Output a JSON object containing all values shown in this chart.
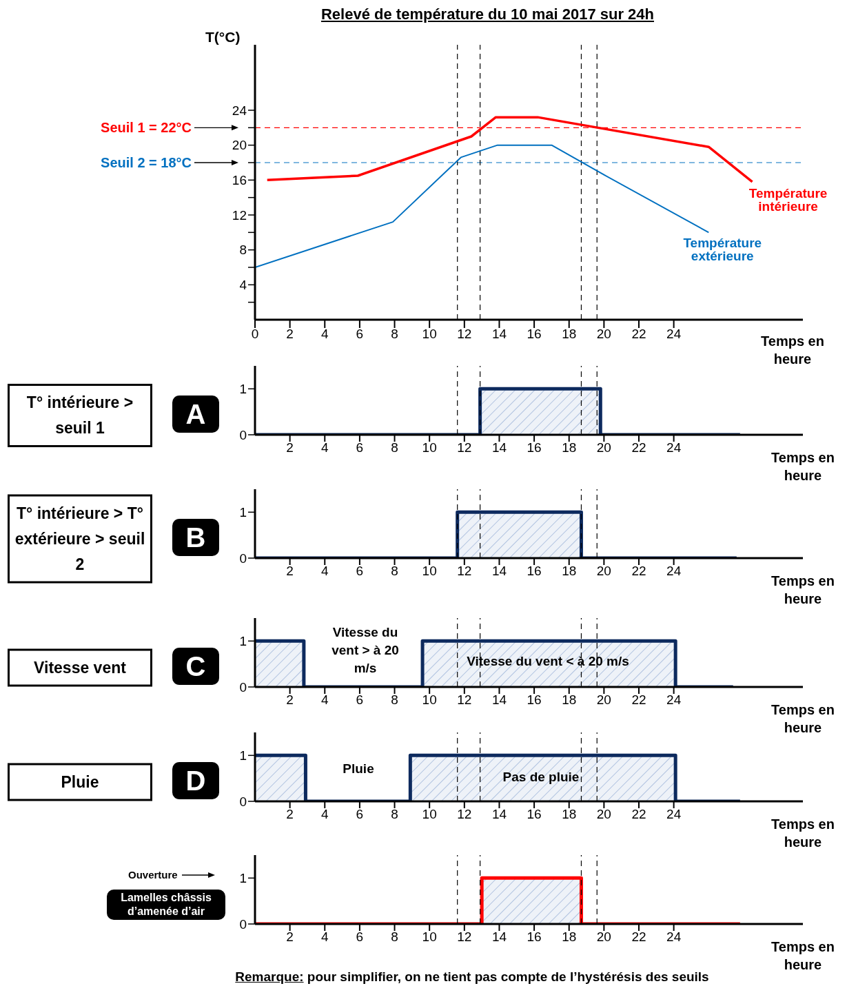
{
  "chart_data": [
    {
      "type": "line",
      "title": "Relevé de température du 10 mai 2017 sur 24h",
      "xlabel": "Temps en heure",
      "ylabel": "T(°C)",
      "legend": false,
      "marker": "none",
      "xlim": [
        0,
        31.4
      ],
      "xticks": [
        0,
        2,
        4,
        6,
        8,
        10,
        12,
        14,
        16,
        18,
        20,
        22,
        24
      ],
      "ylim": [
        0,
        31.5
      ],
      "yticks": [
        {
          "value": 2,
          "label": null
        },
        4,
        {
          "value": 6,
          "label": null
        },
        8,
        {
          "value": 10,
          "label": null
        },
        12,
        {
          "value": 14,
          "label": null
        },
        16,
        {
          "value": 18,
          "label": null
        },
        20,
        {
          "value": 22,
          "label": null
        },
        24
      ],
      "series": [
        {
          "name": "Température intérieure",
          "color": "#ff0000",
          "x": [
            0.7,
            5.9,
            12.4,
            13.8,
            16.2,
            26,
            28.5
          ],
          "values": [
            16,
            16.5,
            21,
            23.2,
            23.2,
            19.8,
            15.8
          ]
        },
        {
          "name": "Température extérieure",
          "color": "#0070c0",
          "x": [
            0,
            7.9,
            11.8,
            13.9,
            17,
            20,
            26
          ],
          "values": [
            6,
            11.2,
            18.6,
            20,
            20,
            16.6,
            10
          ]
        }
      ],
      "ref_lines": [
        {
          "axis": "y",
          "value": 22,
          "label": "Seuil 1 =  22°C",
          "color": "#ff0000",
          "line_style": "dashed"
        },
        {
          "axis": "y",
          "value": 18,
          "label": "Seuil 2 =  18°C",
          "color": "#0070c0",
          "line_style": "dashed"
        },
        {
          "axis": "x",
          "value": 11.6,
          "line_style": "dashed"
        },
        {
          "axis": "x",
          "value": 12.9,
          "line_style": "dashed"
        },
        {
          "axis": "x",
          "value": 18.7,
          "line_style": "dashed"
        },
        {
          "axis": "x",
          "value": 19.6,
          "line_style": "dashed"
        }
      ]
    },
    {
      "type": "area",
      "title": "A",
      "ylabel": "T° intérieure > seuil 1",
      "xlabel": "Temps en heure",
      "legend": false,
      "xlim": [
        0,
        31.4
      ],
      "xticks": [
        2,
        4,
        6,
        8,
        10,
        12,
        14,
        16,
        18,
        20,
        22,
        24
      ],
      "ylim": [
        0,
        1.5
      ],
      "yticks": [
        0,
        1
      ],
      "series": [
        {
          "color": "#0d2a5e",
          "x": [
            0,
            12.9,
            12.9,
            19.8,
            19.8,
            27.8
          ],
          "values": [
            0,
            0,
            1,
            1,
            0,
            0
          ]
        }
      ],
      "ref_lines": [
        {
          "axis": "x",
          "value": 11.6,
          "line_style": "dashed"
        },
        {
          "axis": "x",
          "value": 12.9,
          "line_style": "dashed"
        },
        {
          "axis": "x",
          "value": 18.7,
          "line_style": "dashed"
        },
        {
          "axis": "x",
          "value": 19.6,
          "line_style": "dashed"
        }
      ]
    },
    {
      "type": "area",
      "title": "B",
      "ylabel": "T° intérieure > T° extérieure > seuil 2",
      "xlabel": "Temps en heure",
      "legend": false,
      "xlim": [
        0,
        31.4
      ],
      "xticks": [
        2,
        4,
        6,
        8,
        10,
        12,
        14,
        16,
        18,
        20,
        22,
        24
      ],
      "ylim": [
        0,
        1.5
      ],
      "yticks": [
        0,
        1
      ],
      "series": [
        {
          "color": "#0d2a5e",
          "x": [
            0,
            11.6,
            11.6,
            18.7,
            18.7,
            27.6
          ],
          "values": [
            0,
            0,
            1,
            1,
            0,
            0
          ]
        }
      ],
      "ref_lines": [
        {
          "axis": "x",
          "value": 11.6,
          "line_style": "dashed"
        },
        {
          "axis": "x",
          "value": 12.9,
          "line_style": "dashed"
        },
        {
          "axis": "x",
          "value": 18.7,
          "line_style": "dashed"
        },
        {
          "axis": "x",
          "value": 19.6,
          "line_style": "dashed"
        }
      ]
    },
    {
      "type": "area",
      "title": "C",
      "ylabel": "Vitesse vent",
      "xlabel": "Temps en heure",
      "legend": false,
      "xlim": [
        0,
        31.4
      ],
      "xticks": [
        2,
        4,
        6,
        8,
        10,
        12,
        14,
        16,
        18,
        20,
        22,
        24
      ],
      "ylim": [
        0,
        1.5
      ],
      "yticks": [
        0,
        1
      ],
      "series": [
        {
          "color": "#0d2a5e",
          "x": [
            0,
            2.8,
            2.8,
            9.6,
            9.6,
            24.1,
            24.1,
            27.4
          ],
          "values": [
            1,
            1,
            0,
            0,
            1,
            1,
            0,
            0
          ]
        }
      ],
      "annotations": [
        "Vitesse du vent > à 20 m/s",
        "Vitesse du vent < à 20 m/s"
      ],
      "ref_lines": [
        {
          "axis": "x",
          "value": 11.6,
          "line_style": "dashed"
        },
        {
          "axis": "x",
          "value": 12.9,
          "line_style": "dashed"
        },
        {
          "axis": "x",
          "value": 18.7,
          "line_style": "dashed"
        },
        {
          "axis": "x",
          "value": 19.6,
          "line_style": "dashed"
        }
      ]
    },
    {
      "type": "area",
      "title": "D",
      "ylabel": "Pluie",
      "xlabel": "Temps en heure",
      "legend": false,
      "xlim": [
        0,
        31.4
      ],
      "xticks": [
        2,
        4,
        6,
        8,
        10,
        12,
        14,
        16,
        18,
        20,
        22,
        24
      ],
      "ylim": [
        0,
        1.5
      ],
      "yticks": [
        0,
        1
      ],
      "series": [
        {
          "color": "#0d2a5e",
          "x": [
            0,
            2.9,
            2.9,
            8.9,
            8.9,
            24.1,
            24.1,
            27.8
          ],
          "values": [
            1,
            1,
            0,
            0,
            1,
            1,
            0,
            0
          ]
        }
      ],
      "annotations": [
        "Pluie",
        "Pas de pluie"
      ],
      "ref_lines": [
        {
          "axis": "x",
          "value": 11.6,
          "line_style": "dashed"
        },
        {
          "axis": "x",
          "value": 12.9,
          "line_style": "dashed"
        },
        {
          "axis": "x",
          "value": 18.7,
          "line_style": "dashed"
        },
        {
          "axis": "x",
          "value": 19.6,
          "line_style": "dashed"
        }
      ]
    },
    {
      "type": "area",
      "title": "Lamelles châssis d’amenée d’air",
      "ylabel": "Ouverture",
      "xlabel": "Temps en heure",
      "legend": false,
      "xlim": [
        0,
        31.4
      ],
      "xticks": [
        2,
        4,
        6,
        8,
        10,
        12,
        14,
        16,
        18,
        20,
        22,
        24
      ],
      "ylim": [
        0,
        1.5
      ],
      "yticks": [
        0,
        1
      ],
      "series": [
        {
          "color": "#ff0000",
          "x": [
            0,
            13,
            13,
            18.7,
            18.7,
            27.8
          ],
          "values": [
            0,
            0,
            1,
            1,
            0,
            0
          ]
        }
      ],
      "annotations": [
        "Remarque: pour simplifier, on ne tient pas compte de l’hystérésis des seuils"
      ],
      "ref_lines": [
        {
          "axis": "x",
          "value": 11.6,
          "line_style": "dashed"
        },
        {
          "axis": "x",
          "value": 12.9,
          "line_style": "dashed"
        },
        {
          "axis": "x",
          "value": 18.7,
          "line_style": "dashed"
        },
        {
          "axis": "x",
          "value": 19.6,
          "line_style": "dashed"
        }
      ]
    }
  ]
}
